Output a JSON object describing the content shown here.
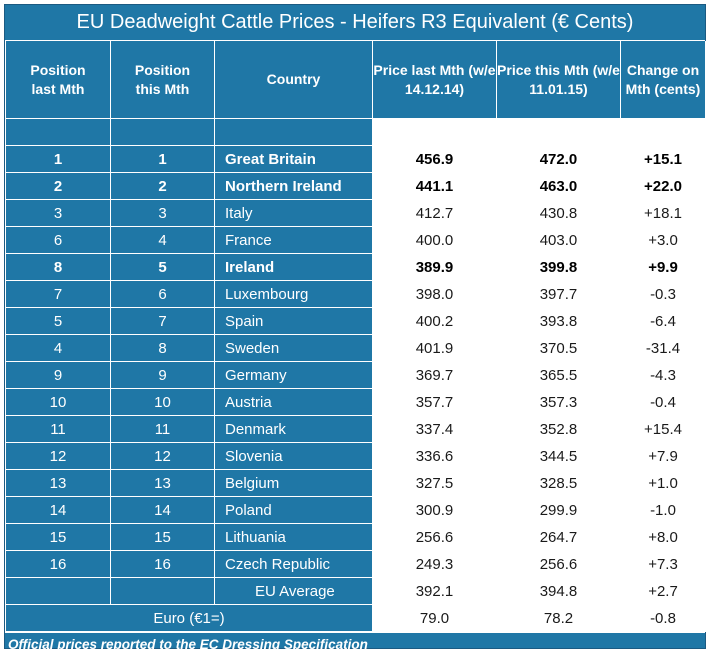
{
  "title": "EU Deadweight Cattle Prices - Heifers R3 Equivalent (€ Cents)",
  "headers": {
    "pos_last": "Position last Mth",
    "pos_this": "Position this Mth",
    "country": "Country",
    "price_last": "Price last Mth (w/e 14.12.14)",
    "price_this": "Price this Mth (w/e 11.01.15)",
    "change": "Change on Mth (cents)"
  },
  "rows": [
    {
      "pos_last": "1",
      "pos_this": "1",
      "country": "Great Britain",
      "price_last": "456.9",
      "price_this": "472.0",
      "change": "+15.1",
      "bold": true
    },
    {
      "pos_last": "2",
      "pos_this": "2",
      "country": "Northern Ireland",
      "price_last": "441.1",
      "price_this": "463.0",
      "change": "+22.0",
      "bold": true
    },
    {
      "pos_last": "3",
      "pos_this": "3",
      "country": "Italy",
      "price_last": "412.7",
      "price_this": "430.8",
      "change": "+18.1",
      "bold": false
    },
    {
      "pos_last": "6",
      "pos_this": "4",
      "country": "France",
      "price_last": "400.0",
      "price_this": "403.0",
      "change": "+3.0",
      "bold": false
    },
    {
      "pos_last": "8",
      "pos_this": "5",
      "country": "Ireland",
      "price_last": "389.9",
      "price_this": "399.8",
      "change": "+9.9",
      "bold": true
    },
    {
      "pos_last": "7",
      "pos_this": "6",
      "country": "Luxembourg",
      "price_last": "398.0",
      "price_this": "397.7",
      "change": "-0.3",
      "bold": false
    },
    {
      "pos_last": "5",
      "pos_this": "7",
      "country": "Spain",
      "price_last": "400.2",
      "price_this": "393.8",
      "change": "-6.4",
      "bold": false
    },
    {
      "pos_last": "4",
      "pos_this": "8",
      "country": "Sweden",
      "price_last": "401.9",
      "price_this": "370.5",
      "change": "-31.4",
      "bold": false
    },
    {
      "pos_last": "9",
      "pos_this": "9",
      "country": "Germany",
      "price_last": "369.7",
      "price_this": "365.5",
      "change": "-4.3",
      "bold": false
    },
    {
      "pos_last": "10",
      "pos_this": "10",
      "country": "Austria",
      "price_last": "357.7",
      "price_this": "357.3",
      "change": "-0.4",
      "bold": false
    },
    {
      "pos_last": "11",
      "pos_this": "11",
      "country": "Denmark",
      "price_last": "337.4",
      "price_this": "352.8",
      "change": "+15.4",
      "bold": false
    },
    {
      "pos_last": "12",
      "pos_this": "12",
      "country": "Slovenia",
      "price_last": "336.6",
      "price_this": "344.5",
      "change": "+7.9",
      "bold": false
    },
    {
      "pos_last": "13",
      "pos_this": "13",
      "country": "Belgium",
      "price_last": "327.5",
      "price_this": "328.5",
      "change": "+1.0",
      "bold": false
    },
    {
      "pos_last": "14",
      "pos_this": "14",
      "country": "Poland",
      "price_last": "300.9",
      "price_this": "299.9",
      "change": "-1.0",
      "bold": false
    },
    {
      "pos_last": "15",
      "pos_this": "15",
      "country": "Lithuania",
      "price_last": "256.6",
      "price_this": "264.7",
      "change": "+8.0",
      "bold": false
    },
    {
      "pos_last": "16",
      "pos_this": "16",
      "country": "Czech Republic",
      "price_last": "249.3",
      "price_this": "256.6",
      "change": "+7.3",
      "bold": false
    }
  ],
  "eu_average": {
    "label": "EU Average",
    "price_last": "392.1",
    "price_this": "394.8",
    "change": "+2.7"
  },
  "euro": {
    "label": "Euro (€1=)",
    "price_last": "79.0",
    "price_this": "78.2",
    "change": "-0.8"
  },
  "footer": "Official prices reported to the EC Dressing Specification"
}
